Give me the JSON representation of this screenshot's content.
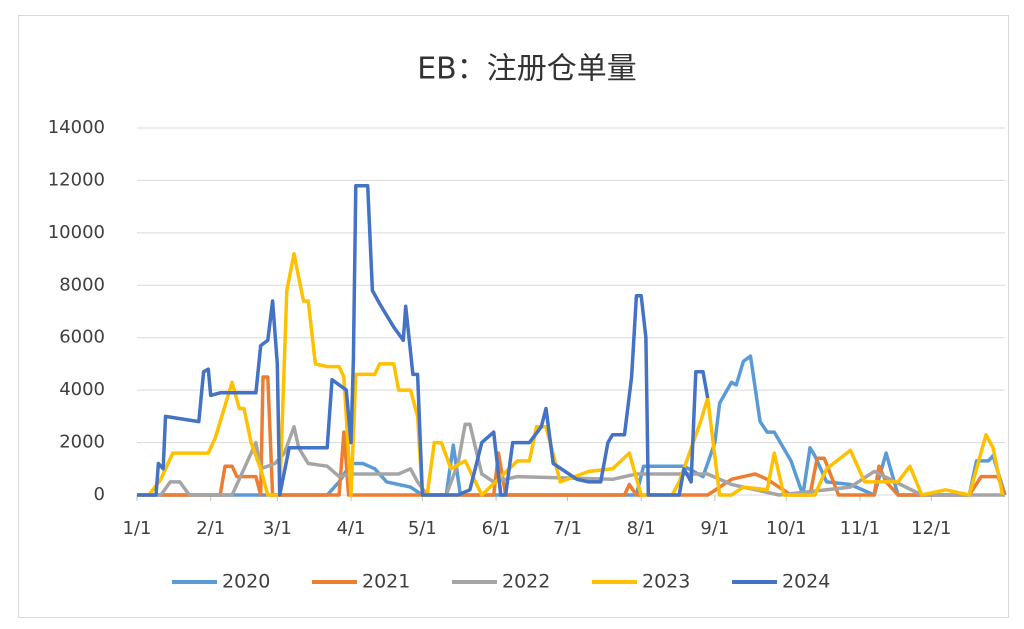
{
  "chart_data": {
    "type": "line",
    "title": "EB：注册仓单量",
    "xlim": [
      0,
      365
    ],
    "xticks": [
      {
        "value": 0,
        "label": "1/1"
      },
      {
        "value": 31,
        "label": "2/1"
      },
      {
        "value": 59,
        "label": "3/1"
      },
      {
        "value": 90,
        "label": "4/1"
      },
      {
        "value": 120,
        "label": "5/1"
      },
      {
        "value": 151,
        "label": "6/1"
      },
      {
        "value": 181,
        "label": "7/1"
      },
      {
        "value": 212,
        "label": "8/1"
      },
      {
        "value": 243,
        "label": "9/1"
      },
      {
        "value": 273,
        "label": "10/1"
      },
      {
        "value": 304,
        "label": "11/1"
      },
      {
        "value": 334,
        "label": "12/1"
      }
    ],
    "ylim": [
      0,
      14000
    ],
    "yticks": [
      0,
      2000,
      4000,
      6000,
      8000,
      10000,
      12000,
      14000
    ],
    "grid": true,
    "legend": "bottom",
    "series": [
      {
        "name": "2020",
        "color": "#5b9bd5",
        "x": [
          0,
          80,
          85,
          90,
          95,
          100,
          105,
          110,
          115,
          120,
          130,
          133,
          136,
          140,
          210,
          213,
          230,
          238,
          243,
          245,
          250,
          252,
          255,
          258,
          262,
          265,
          268,
          275,
          280,
          283,
          285,
          290,
          300,
          310,
          315,
          320,
          330,
          350,
          353,
          358,
          360,
          365
        ],
        "values": [
          0,
          0,
          500,
          1200,
          1200,
          1000,
          500,
          400,
          300,
          0,
          0,
          1900,
          0,
          0,
          0,
          1100,
          1100,
          700,
          2000,
          3500,
          4300,
          4200,
          5100,
          5300,
          2800,
          2400,
          2400,
          1300,
          0,
          1800,
          1500,
          500,
          400,
          0,
          1600,
          0,
          0,
          0,
          1300,
          1300,
          1500,
          0
        ]
      },
      {
        "name": "2021",
        "color": "#ed7d31",
        "x": [
          0,
          35,
          37,
          40,
          42,
          50,
          52,
          53,
          55,
          57,
          58,
          85,
          87,
          89,
          90,
          150,
          152,
          155,
          205,
          207,
          210,
          240,
          250,
          255,
          260,
          265,
          275,
          283,
          286,
          289,
          295,
          310,
          312,
          315,
          320,
          350,
          355,
          362,
          365
        ],
        "values": [
          0,
          0,
          1100,
          1100,
          700,
          700,
          0,
          4500,
          4500,
          0,
          0,
          0,
          2400,
          0,
          0,
          0,
          1600,
          0,
          0,
          400,
          0,
          0,
          600,
          700,
          800,
          600,
          0,
          0,
          1400,
          1400,
          0,
          0,
          1100,
          500,
          0,
          0,
          700,
          700,
          0
        ]
      },
      {
        "name": "2022",
        "color": "#a5a5a5",
        "x": [
          0,
          10,
          14,
          18,
          22,
          40,
          45,
          50,
          52,
          58,
          62,
          66,
          68,
          72,
          80,
          85,
          90,
          110,
          115,
          118,
          122,
          130,
          135,
          138,
          140,
          145,
          150,
          160,
          200,
          210,
          240,
          250,
          270,
          300,
          310,
          330,
          365
        ],
        "values": [
          0,
          0,
          500,
          500,
          0,
          0,
          1000,
          2000,
          1000,
          1200,
          1600,
          2600,
          1800,
          1200,
          1100,
          700,
          800,
          800,
          1000,
          500,
          0,
          0,
          1200,
          2700,
          2700,
          800,
          500,
          700,
          600,
          800,
          800,
          400,
          0,
          300,
          900,
          0,
          0
        ]
      },
      {
        "name": "2023",
        "color": "#ffc000",
        "x": [
          0,
          5,
          10,
          15,
          30,
          33,
          40,
          43,
          45,
          48,
          52,
          55,
          60,
          63,
          66,
          70,
          72,
          75,
          80,
          85,
          87,
          90,
          92,
          100,
          102,
          108,
          110,
          115,
          118,
          120,
          122,
          125,
          128,
          132,
          138,
          145,
          160,
          165,
          168,
          172,
          178,
          190,
          200,
          207,
          212,
          225,
          228,
          237,
          240,
          245,
          250,
          255,
          265,
          268,
          272,
          285,
          290,
          300,
          306,
          320,
          325,
          330,
          340,
          350,
          357,
          360,
          364
        ],
        "values": [
          0,
          0,
          600,
          1600,
          1600,
          2200,
          4300,
          3300,
          3300,
          2000,
          1000,
          0,
          0,
          7800,
          9200,
          7400,
          7400,
          5000,
          4900,
          4900,
          4500,
          0,
          4600,
          4600,
          5000,
          5000,
          4000,
          4000,
          3000,
          0,
          0,
          2000,
          2000,
          1000,
          1300,
          0,
          1300,
          1300,
          2600,
          2600,
          500,
          900,
          1000,
          1600,
          0,
          0,
          500,
          2800,
          3700,
          0,
          0,
          300,
          200,
          1600,
          0,
          0,
          1000,
          1700,
          500,
          500,
          1100,
          0,
          200,
          0,
          2300,
          1800,
          0
        ]
      },
      {
        "name": "2024",
        "color": "#4472c4",
        "x": [
          0,
          8,
          9,
          11,
          12,
          26,
          28,
          30,
          31,
          35,
          50,
          52,
          55,
          57,
          59,
          60,
          64,
          80,
          82,
          88,
          90,
          91,
          92,
          97,
          99,
          102,
          108,
          112,
          113,
          116,
          118,
          120,
          135,
          140,
          145,
          150,
          153,
          155,
          158,
          165,
          170,
          172,
          175,
          185,
          190,
          195,
          198,
          200,
          205,
          208,
          210,
          212,
          214,
          215,
          228,
          230,
          233,
          235,
          238,
          240
        ],
        "values": [
          0,
          0,
          1200,
          1000,
          3000,
          2800,
          4700,
          4800,
          3800,
          3900,
          3900,
          5700,
          5900,
          7400,
          5000,
          0,
          1800,
          1800,
          4400,
          4000,
          2000,
          5200,
          11800,
          11800,
          7800,
          7300,
          6400,
          5900,
          7200,
          4600,
          4600,
          0,
          0,
          200,
          2000,
          2400,
          0,
          0,
          2000,
          2000,
          2600,
          3300,
          1200,
          600,
          500,
          500,
          2000,
          2300,
          2300,
          4500,
          7600,
          7600,
          6000,
          0,
          0,
          1000,
          500,
          4700,
          4700,
          3700
        ]
      }
    ]
  }
}
